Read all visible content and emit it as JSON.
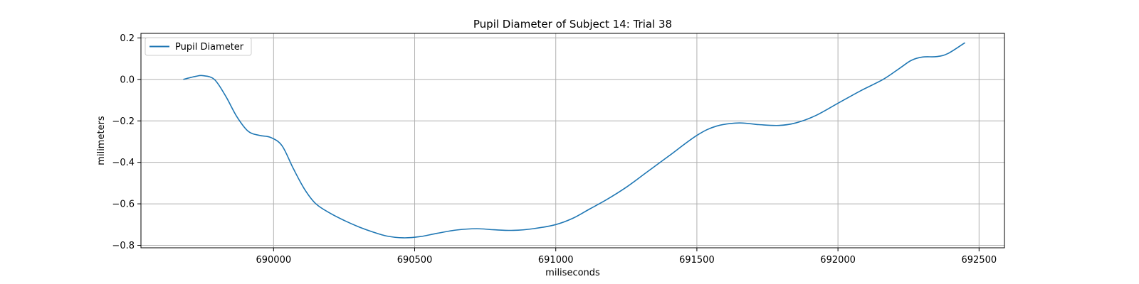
{
  "chart_data": {
    "type": "line",
    "title": "Pupil Diameter of Subject 14: Trial 38",
    "xlabel": "miliseconds",
    "ylabel": "milimeters",
    "xlim": [
      689530,
      692590
    ],
    "ylim": [
      -0.812,
      0.222
    ],
    "xticks": [
      690000,
      690500,
      691000,
      691500,
      692000,
      692500
    ],
    "yticks": [
      -0.8,
      -0.6,
      -0.4,
      -0.2,
      0.0,
      0.2
    ],
    "ytick_labels": [
      "−0.8",
      "−0.6",
      "−0.4",
      "−0.2",
      "0.0",
      "0.2"
    ],
    "grid": true,
    "legend_position": "upper-left",
    "colors": {
      "series": "#1f77b4",
      "grid": "#b0b0b0",
      "axes": "#000000"
    },
    "series": [
      {
        "name": "Pupil Diameter",
        "x": [
          689680,
          689725,
          689750,
          689790,
          689830,
          689870,
          689910,
          689950,
          689990,
          690030,
          690070,
          690110,
          690150,
          690200,
          690250,
          690300,
          690350,
          690400,
          690460,
          690520,
          690580,
          690650,
          690720,
          690780,
          690850,
          690920,
          691000,
          691060,
          691120,
          691180,
          691250,
          691320,
          691400,
          691500,
          691570,
          691650,
          691720,
          691790,
          691850,
          691920,
          692000,
          692080,
          692160,
          692220,
          692260,
          692300,
          692350,
          692390,
          692450
        ],
        "y": [
          0.0,
          0.015,
          0.018,
          0.0,
          -0.08,
          -0.18,
          -0.25,
          -0.27,
          -0.28,
          -0.32,
          -0.43,
          -0.53,
          -0.6,
          -0.645,
          -0.68,
          -0.71,
          -0.735,
          -0.755,
          -0.764,
          -0.758,
          -0.742,
          -0.726,
          -0.72,
          -0.725,
          -0.728,
          -0.72,
          -0.7,
          -0.67,
          -0.625,
          -0.58,
          -0.52,
          -0.45,
          -0.37,
          -0.27,
          -0.225,
          -0.21,
          -0.218,
          -0.222,
          -0.21,
          -0.175,
          -0.115,
          -0.055,
          0.0,
          0.055,
          0.092,
          0.108,
          0.11,
          0.125,
          0.177
        ]
      }
    ]
  }
}
